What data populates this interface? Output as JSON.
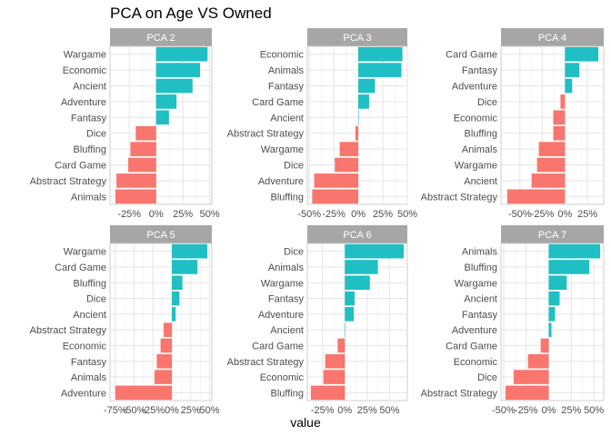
{
  "chart_data": {
    "type": "bar",
    "title": "PCA on Age VS Owned",
    "xlabel": "value",
    "ylabel": "",
    "orientation": "horizontal",
    "grid": true,
    "colors": {
      "positive": "#1FBFC3",
      "negative": "#F8766D",
      "strip": "#A6A6A6",
      "strip_text": "#ffffff",
      "grid": "#E5E5E5"
    },
    "panels": [
      {
        "strip": "PCA 2",
        "categories": [
          "Wargame",
          "Economic",
          "Ancient",
          "Adventure",
          "Fantasy",
          "Dice",
          "Bluffing",
          "Card Game",
          "Abstract Strategy",
          "Animals"
        ],
        "values": [
          0.48,
          0.41,
          0.34,
          0.19,
          0.12,
          -0.19,
          -0.24,
          -0.26,
          -0.37,
          -0.38
        ],
        "xlim": [
          -0.43,
          0.52
        ],
        "ticks": [
          -0.25,
          0,
          0.25,
          0.5
        ],
        "tick_labels": [
          "-25%",
          "0%",
          "25%",
          "50%"
        ]
      },
      {
        "strip": "PCA 3",
        "categories": [
          "Economic",
          "Animals",
          "Fantasy",
          "Card Game",
          "Ancient",
          "Abstract Strategy",
          "Wargame",
          "Dice",
          "Adventure",
          "Bluffing"
        ],
        "values": [
          0.45,
          0.44,
          0.17,
          0.11,
          0.0,
          -0.03,
          -0.19,
          -0.24,
          -0.45,
          -0.47
        ],
        "xlim": [
          -0.52,
          0.5
        ],
        "ticks": [
          -0.5,
          -0.25,
          0,
          0.25,
          0.5
        ],
        "tick_labels": [
          "-50%",
          "-25%",
          "0%",
          "25%",
          "50%"
        ]
      },
      {
        "strip": "PCA 4",
        "categories": [
          "Card Game",
          "Fantasy",
          "Adventure",
          "Dice",
          "Economic",
          "Bluffing",
          "Animals",
          "Wargame",
          "Ancient",
          "Abstract Strategy"
        ],
        "values": [
          0.37,
          0.16,
          0.08,
          -0.05,
          -0.13,
          -0.13,
          -0.29,
          -0.31,
          -0.37,
          -0.64
        ],
        "xlim": [
          -0.71,
          0.43
        ],
        "ticks": [
          -0.5,
          -0.25,
          0,
          0.25
        ],
        "tick_labels": [
          "-50%",
          "-25%",
          "0%",
          "25%"
        ]
      },
      {
        "strip": "PCA 5",
        "categories": [
          "Wargame",
          "Card Game",
          "Bluffing",
          "Dice",
          "Ancient",
          "Abstract Strategy",
          "Economic",
          "Fantasy",
          "Animals",
          "Adventure"
        ],
        "values": [
          0.47,
          0.34,
          0.14,
          0.1,
          0.05,
          -0.11,
          -0.15,
          -0.2,
          -0.23,
          -0.75
        ],
        "xlim": [
          -0.82,
          0.53
        ],
        "ticks": [
          -0.75,
          -0.5,
          -0.25,
          0,
          0.25,
          0.5
        ],
        "tick_labels": [
          "-75%",
          "-50%",
          "-25%",
          "0%",
          "25%",
          "50%"
        ]
      },
      {
        "strip": "PCA 6",
        "categories": [
          "Dice",
          "Animals",
          "Wargame",
          "Fantasy",
          "Adventure",
          "Ancient",
          "Card Game",
          "Abstract Strategy",
          "Economic",
          "Bluffing"
        ],
        "values": [
          0.66,
          0.37,
          0.28,
          0.11,
          0.1,
          0.0,
          -0.08,
          -0.22,
          -0.24,
          -0.38
        ],
        "xlim": [
          -0.42,
          0.7
        ],
        "ticks": [
          -0.25,
          0,
          0.25,
          0.5
        ],
        "tick_labels": [
          "-25%",
          "0%",
          "25%",
          "50%"
        ]
      },
      {
        "strip": "PCA 7",
        "categories": [
          "Animals",
          "Bluffing",
          "Wargame",
          "Ancient",
          "Fantasy",
          "Adventure",
          "Card Game",
          "Economic",
          "Dice",
          "Abstract Strategy"
        ],
        "values": [
          0.57,
          0.45,
          0.2,
          0.12,
          0.07,
          0.03,
          -0.09,
          -0.23,
          -0.39,
          -0.48
        ],
        "xlim": [
          -0.53,
          0.61
        ],
        "ticks": [
          -0.5,
          -0.25,
          0,
          0.25,
          0.5
        ],
        "tick_labels": [
          "-50%",
          "-25%",
          "0%",
          "25%",
          "50%"
        ]
      }
    ]
  }
}
